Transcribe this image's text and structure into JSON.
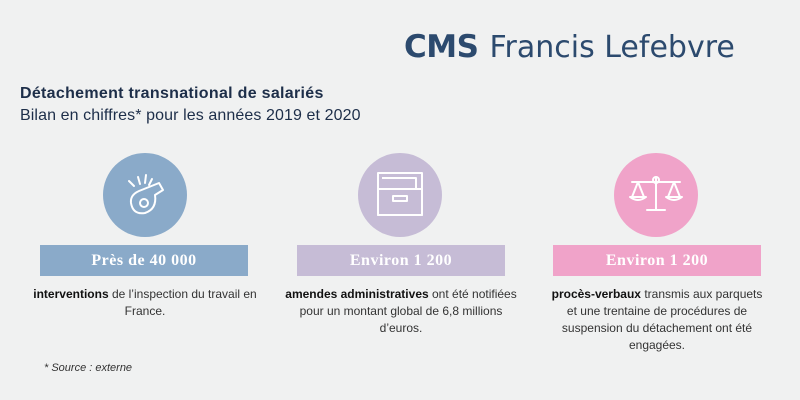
{
  "colors": {
    "logo_blue": "#2c4a6e",
    "logo_teal": "#2b7a8a",
    "title": "#1d2e49",
    "blue": "#8aaac9",
    "lavender": "#c6bcd6",
    "pink": "#f0a3c9"
  },
  "logo": {
    "mark": "CMS",
    "name": "Francis Lefebvre"
  },
  "header": {
    "title": "Détachement transnational de salariés",
    "subtitle": "Bilan en chiffres* pour les années 2019 et 2020"
  },
  "stats": [
    {
      "icon": "whistle-icon",
      "figure": "Près de 40 000",
      "bold": "interventions",
      "text": " de l’inspection du travail en France."
    },
    {
      "icon": "file-tray-icon",
      "figure": "Environ 1 200",
      "bold": "amendes administratives",
      "text": " ont été notifiées pour un montant global de 6,8 millions d’euros."
    },
    {
      "icon": "scales-icon",
      "figure": "Environ 1 200",
      "bold": "procès-verbaux",
      "text": " transmis aux parquets et une trentaine de procédures de suspension du détachement ont été engagées."
    }
  ],
  "footer": {
    "source": "* Source : externe"
  }
}
